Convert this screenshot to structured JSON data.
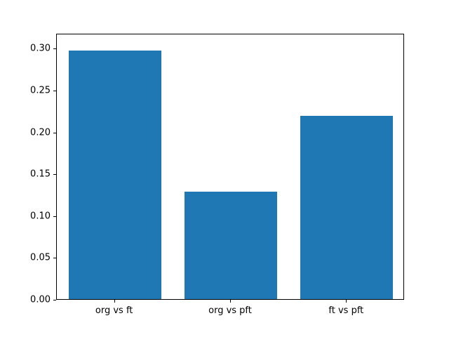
{
  "chart_data": {
    "type": "bar",
    "categories": [
      "org vs ft",
      "org vs pft",
      "ft vs pft"
    ],
    "values": [
      0.297,
      0.128,
      0.219
    ],
    "title": "",
    "xlabel": "",
    "ylabel": "",
    "ylim": [
      0,
      0.318
    ],
    "yticks": [
      0.0,
      0.05,
      0.1,
      0.15,
      0.2,
      0.25,
      0.3
    ],
    "ytick_labels": [
      "0.00",
      "0.05",
      "0.10",
      "0.15",
      "0.20",
      "0.25",
      "0.30"
    ],
    "bar_color": "#1f77b4",
    "bar_width_fraction": 0.8,
    "grid": false,
    "legend": null
  }
}
